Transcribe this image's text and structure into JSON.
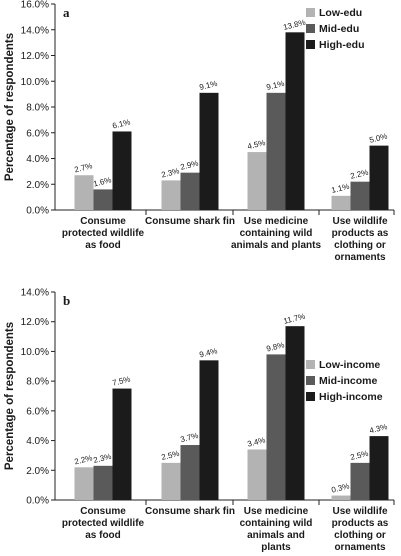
{
  "colors": {
    "low": "#b3b3b3",
    "mid": "#5a5a5a",
    "high": "#1b1b1b",
    "axis": "#222222"
  },
  "y_title": "Percentage of respondents",
  "chart_data": [
    {
      "type": "bar",
      "panel": "a",
      "ylabel": "Percentage of respondents",
      "ylim": [
        0,
        16
      ],
      "yticks": [
        "0.0%",
        "2.0%",
        "4.0%",
        "6.0%",
        "8.0%",
        "10.0%",
        "12.0%",
        "14.0%",
        "16.0%"
      ],
      "yticks_values": [
        0,
        2,
        4,
        6,
        8,
        10,
        12,
        14,
        16
      ],
      "grid": false,
      "legend_position": "top-right",
      "categories": [
        [
          "Consume",
          "protected wildlife",
          "as food"
        ],
        [
          "Consume shark fin"
        ],
        [
          "Use medicine",
          "containing wild",
          "animals and plants"
        ],
        [
          "Use wildlife",
          "products as",
          "clothing or",
          "ornaments"
        ]
      ],
      "series": [
        {
          "name": "Low-edu",
          "values": [
            2.7,
            2.3,
            4.5,
            1.1
          ],
          "labels": [
            "2.7%",
            "2.3%",
            "4.5%",
            "1.1%"
          ]
        },
        {
          "name": "Mid-edu",
          "values": [
            1.6,
            2.9,
            9.1,
            2.2
          ],
          "labels": [
            "1.6%",
            "2.9%",
            "9.1%",
            "2.2%"
          ]
        },
        {
          "name": "High-edu",
          "values": [
            6.1,
            9.1,
            13.8,
            5.0
          ],
          "labels": [
            "6.1%",
            "9.1%",
            "13.8%",
            "5.0%"
          ]
        }
      ]
    },
    {
      "type": "bar",
      "panel": "b",
      "ylabel": "Percentage of respondents",
      "ylim": [
        0,
        14
      ],
      "yticks": [
        "0.0%",
        "2.0%",
        "4.0%",
        "6.0%",
        "8.0%",
        "10.0%",
        "12.0%",
        "14.0%"
      ],
      "yticks_values": [
        0,
        2,
        4,
        6,
        8,
        10,
        12,
        14
      ],
      "grid": false,
      "legend_position": "middle-right",
      "categories": [
        [
          "Consume",
          "protected wildlife",
          "as food"
        ],
        [
          "Consume shark fin"
        ],
        [
          "Use medicine",
          "containing wild",
          "animals and",
          "plants"
        ],
        [
          "Use wildlife",
          "products as",
          "clothing or",
          "ornaments"
        ]
      ],
      "series": [
        {
          "name": "Low-income",
          "values": [
            2.2,
            2.5,
            3.4,
            0.3
          ],
          "labels": [
            "2.2%",
            "2.5%",
            "3.4%",
            "0.3%"
          ]
        },
        {
          "name": "Mid-income",
          "values": [
            2.3,
            3.7,
            9.8,
            2.5
          ],
          "labels": [
            "2.3%",
            "3.7%",
            "9.8%",
            "2.5%"
          ]
        },
        {
          "name": "High-income",
          "values": [
            7.5,
            9.4,
            11.7,
            4.3
          ],
          "labels": [
            "7.5%",
            "9.4%",
            "11.7%",
            "4.3%"
          ]
        }
      ]
    }
  ]
}
